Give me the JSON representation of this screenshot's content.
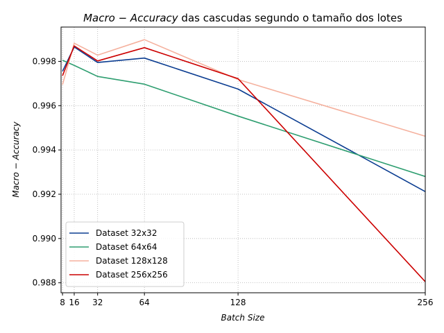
{
  "chart_data": {
    "type": "line",
    "title_math": "Macro − Accuracy",
    "title_rest": " das cascudas segundo o tamaño dos lotes",
    "xlabel": "Batch Size",
    "ylabel": "Macro − Accuracy",
    "x": [
      8,
      16,
      32,
      64,
      128,
      256
    ],
    "x_ticks": [
      8,
      16,
      32,
      64,
      128,
      256
    ],
    "y_ticks": [
      0.988,
      0.99,
      0.992,
      0.994,
      0.996,
      0.998
    ],
    "xlim": [
      7,
      256
    ],
    "ylim": [
      0.98755,
      0.99955
    ],
    "grid": true,
    "legend_position": "lower-left",
    "series": [
      {
        "name": "Dataset 32x32",
        "color": "#0b3d91",
        "values": [
          0.99755,
          0.99865,
          0.99795,
          0.99815,
          0.99675,
          0.99212
        ]
      },
      {
        "name": "Dataset 64x64",
        "color": "#2e9e70",
        "values": [
          0.99805,
          0.99782,
          0.99732,
          0.99697,
          0.99553,
          0.9928
        ]
      },
      {
        "name": "Dataset 128x128",
        "color": "#f5b19e",
        "values": [
          0.99695,
          0.99882,
          0.99828,
          0.99898,
          0.99718,
          0.99462
        ]
      },
      {
        "name": "Dataset 256x256",
        "color": "#cc0000",
        "values": [
          0.99735,
          0.9987,
          0.99802,
          0.99862,
          0.99722,
          0.98805
        ]
      }
    ]
  }
}
